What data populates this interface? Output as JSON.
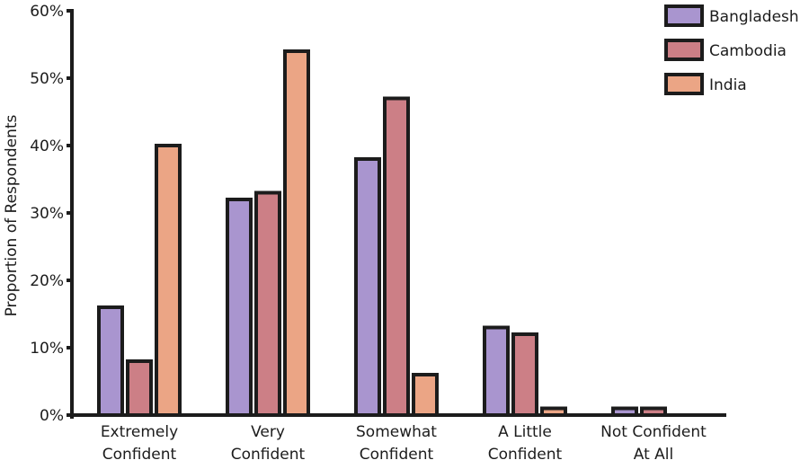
{
  "chart_data": {
    "type": "bar",
    "title": "",
    "xlabel": "",
    "ylabel": "Proportion of Respondents",
    "ylim": [
      0,
      60
    ],
    "yticks": [
      "0%",
      "10%",
      "20%",
      "30%",
      "40%",
      "50%",
      "60%"
    ],
    "categories": [
      [
        "Extremely",
        "Confident"
      ],
      [
        "Very",
        "Confident"
      ],
      [
        "Somewhat",
        "Confident"
      ],
      [
        "A Little",
        "Confident"
      ],
      [
        "Not Confident",
        "At All"
      ]
    ],
    "series": [
      {
        "name": "Bangladesh",
        "color": "#a995cf",
        "values": [
          16,
          32,
          38,
          13,
          1
        ]
      },
      {
        "name": "Cambodia",
        "color": "#cc7f86",
        "values": [
          8,
          33,
          47,
          12,
          1
        ]
      },
      {
        "name": "India",
        "color": "#eba585",
        "values": [
          40,
          54,
          6,
          1,
          0
        ]
      }
    ],
    "grid": false,
    "legend_position": "top-right"
  }
}
